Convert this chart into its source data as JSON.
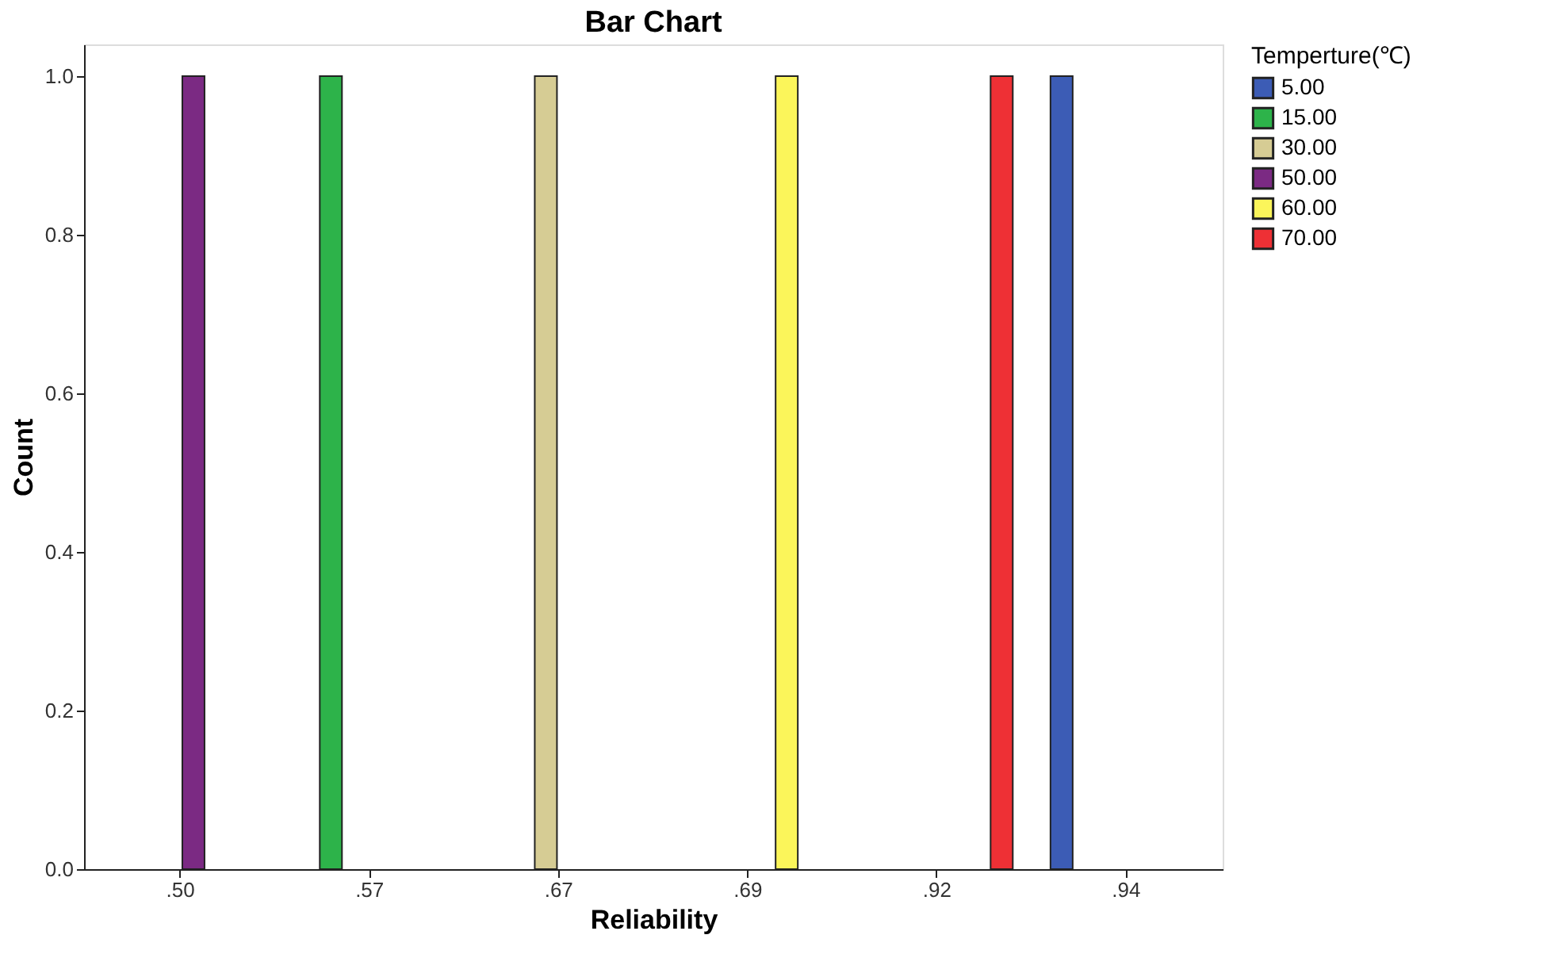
{
  "chart_data": {
    "type": "bar",
    "title": "Bar Chart",
    "xlabel": "Reliability",
    "ylabel": "Count",
    "legend_title": "Temperture(℃)",
    "categories": [
      ".50",
      ".57",
      ".67",
      ".69",
      ".92",
      ".94"
    ],
    "series": [
      {
        "name": "5.00",
        "color": "#3c5cb5",
        "values": [
          null,
          null,
          null,
          null,
          null,
          1.0
        ]
      },
      {
        "name": "15.00",
        "color": "#2db34a",
        "values": [
          null,
          1.0,
          null,
          null,
          null,
          null
        ]
      },
      {
        "name": "30.00",
        "color": "#d6cc94",
        "values": [
          null,
          null,
          1.0,
          null,
          null,
          null
        ]
      },
      {
        "name": "50.00",
        "color": "#7b2a83",
        "values": [
          1.0,
          null,
          null,
          null,
          null,
          null
        ]
      },
      {
        "name": "60.00",
        "color": "#fbf55a",
        "values": [
          null,
          null,
          null,
          1.0,
          null,
          null
        ]
      },
      {
        "name": "70.00",
        "color": "#ee3035",
        "values": [
          null,
          null,
          null,
          null,
          1.0,
          null
        ]
      }
    ],
    "ylim": [
      0,
      1.04
    ],
    "yticks": [
      {
        "value": 0,
        "label": "0.0"
      },
      0.2,
      0.4,
      0.6,
      0.8,
      {
        "value": 1,
        "label": "1.0"
      }
    ],
    "grid": false,
    "legend": "top right"
  }
}
